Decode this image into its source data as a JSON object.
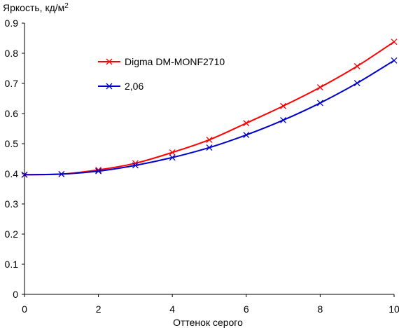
{
  "chart_data": {
    "type": "line",
    "title": "",
    "ylabel": "Яркость, кд/м",
    "ylabel_sup": "2",
    "xlabel": "Оттенок серого",
    "xlim": [
      0,
      10
    ],
    "ylim": [
      0,
      0.9
    ],
    "x_ticks": [
      "0",
      "2",
      "4",
      "6",
      "8",
      "10"
    ],
    "y_ticks": [
      "0",
      "0.1",
      "0.2",
      "0.3",
      "0.4",
      "0.5",
      "0.6",
      "0.7",
      "0.8",
      "0.9"
    ],
    "grid": false,
    "legend_position": "top-center",
    "x": [
      0,
      1,
      2,
      3,
      4,
      5,
      6,
      7,
      8,
      9,
      10
    ],
    "series": [
      {
        "name": "Digma DM-MONF2710",
        "color": "#ff0000",
        "marker": "x",
        "values": [
          0.397,
          0.399,
          0.413,
          0.435,
          0.471,
          0.513,
          0.568,
          0.625,
          0.687,
          0.757,
          0.838
        ]
      },
      {
        "name": "2,06",
        "color": "#0000cc",
        "marker": "x",
        "values": [
          0.397,
          0.399,
          0.409,
          0.428,
          0.454,
          0.487,
          0.529,
          0.578,
          0.635,
          0.701,
          0.776
        ]
      }
    ]
  }
}
